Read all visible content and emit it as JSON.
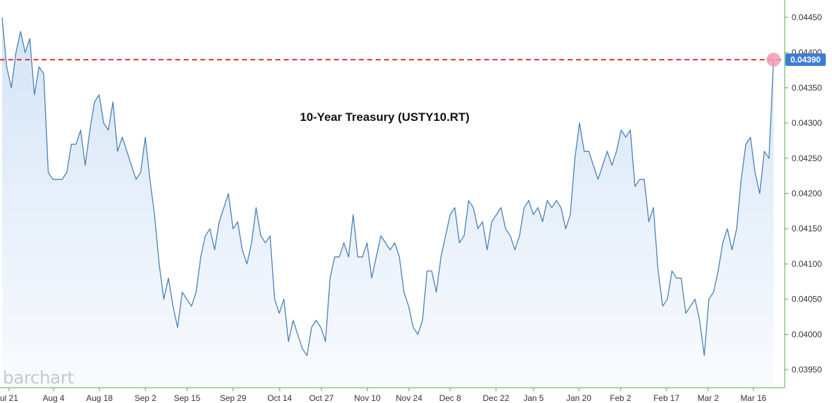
{
  "brand": "barchart",
  "chart_data": {
    "type": "area",
    "title": "10-Year Treasury (USTY10.RT)",
    "xlabel": "",
    "ylabel": "",
    "x_tick_labels": [
      "ul 21",
      "Aug 4",
      "Aug 18",
      "Sep 2",
      "Sep 15",
      "Sep 29",
      "Oct 14",
      "Oct 27",
      "Nov 10",
      "Nov 24",
      "Dec 8",
      "Dec 22",
      "Jan 5",
      "Jan 20",
      "Feb 2",
      "Feb 17",
      "Mar 2",
      "Mar 16"
    ],
    "y_tick_labels": [
      "0.04450",
      "0.04400",
      "0.04350",
      "0.04300",
      "0.04250",
      "0.04200",
      "0.04150",
      "0.04100",
      "0.04050",
      "0.04000",
      "0.03950"
    ],
    "ylim": [
      0.03935,
      0.04465
    ],
    "y_axis_position": "right",
    "grid": false,
    "last_value": 0.0439,
    "last_value_label": "0.04390",
    "reference_line": {
      "value": 0.0439,
      "color": "#d9333b",
      "style": "dashed"
    },
    "colors": {
      "line": "#4a7fb5",
      "area_top": "#d4e4f6",
      "area_bottom": "#f9fbfe",
      "badge": "#3d7cd6",
      "marker": "#f29ab0",
      "axis": "#4caf50"
    },
    "series": [
      {
        "values": [
          0.0445,
          0.0438,
          0.0435,
          0.044,
          0.0443,
          0.044,
          0.0442,
          0.0434,
          0.0438,
          0.0437,
          0.0423,
          0.0422,
          0.0422,
          0.0422,
          0.0423,
          0.0427,
          0.0427,
          0.0429,
          0.0424,
          0.0429,
          0.0433,
          0.0434,
          0.043,
          0.0429,
          0.0433,
          0.0426,
          0.0428,
          0.0426,
          0.0424,
          0.0422,
          0.0423,
          0.0428,
          0.0422,
          0.0417,
          0.041,
          0.0405,
          0.0408,
          0.0404,
          0.0401,
          0.0406,
          0.0405,
          0.0404,
          0.0406,
          0.0411,
          0.0414,
          0.0415,
          0.0412,
          0.0416,
          0.0418,
          0.042,
          0.0415,
          0.0416,
          0.0412,
          0.041,
          0.0413,
          0.0418,
          0.0414,
          0.0413,
          0.0414,
          0.0405,
          0.0403,
          0.0405,
          0.0399,
          0.0402,
          0.04,
          0.0398,
          0.0397,
          0.0401,
          0.0402,
          0.0401,
          0.0399,
          0.0408,
          0.0411,
          0.0411,
          0.0413,
          0.0411,
          0.0417,
          0.0411,
          0.0411,
          0.0413,
          0.0408,
          0.0411,
          0.0414,
          0.0413,
          0.0412,
          0.0413,
          0.0411,
          0.0406,
          0.0404,
          0.0401,
          0.04,
          0.0402,
          0.0409,
          0.0409,
          0.0406,
          0.0411,
          0.0414,
          0.0417,
          0.0418,
          0.0413,
          0.0414,
          0.0419,
          0.0418,
          0.0415,
          0.0416,
          0.0412,
          0.0416,
          0.0417,
          0.0418,
          0.0415,
          0.0414,
          0.0412,
          0.0414,
          0.0418,
          0.0419,
          0.0417,
          0.0418,
          0.0416,
          0.0419,
          0.0418,
          0.0419,
          0.0418,
          0.0415,
          0.0417,
          0.0425,
          0.043,
          0.0426,
          0.0426,
          0.0424,
          0.0422,
          0.0424,
          0.0426,
          0.0424,
          0.0426,
          0.0429,
          0.0428,
          0.0429,
          0.0421,
          0.0422,
          0.0422,
          0.0416,
          0.0418,
          0.0409,
          0.0404,
          0.0405,
          0.0409,
          0.0408,
          0.0408,
          0.0403,
          0.0404,
          0.0405,
          0.0402,
          0.0397,
          0.0405,
          0.0406,
          0.0409,
          0.0413,
          0.0415,
          0.0412,
          0.0415,
          0.0422,
          0.0427,
          0.0428,
          0.0423,
          0.042,
          0.0426,
          0.0425,
          0.0439
        ]
      }
    ]
  }
}
